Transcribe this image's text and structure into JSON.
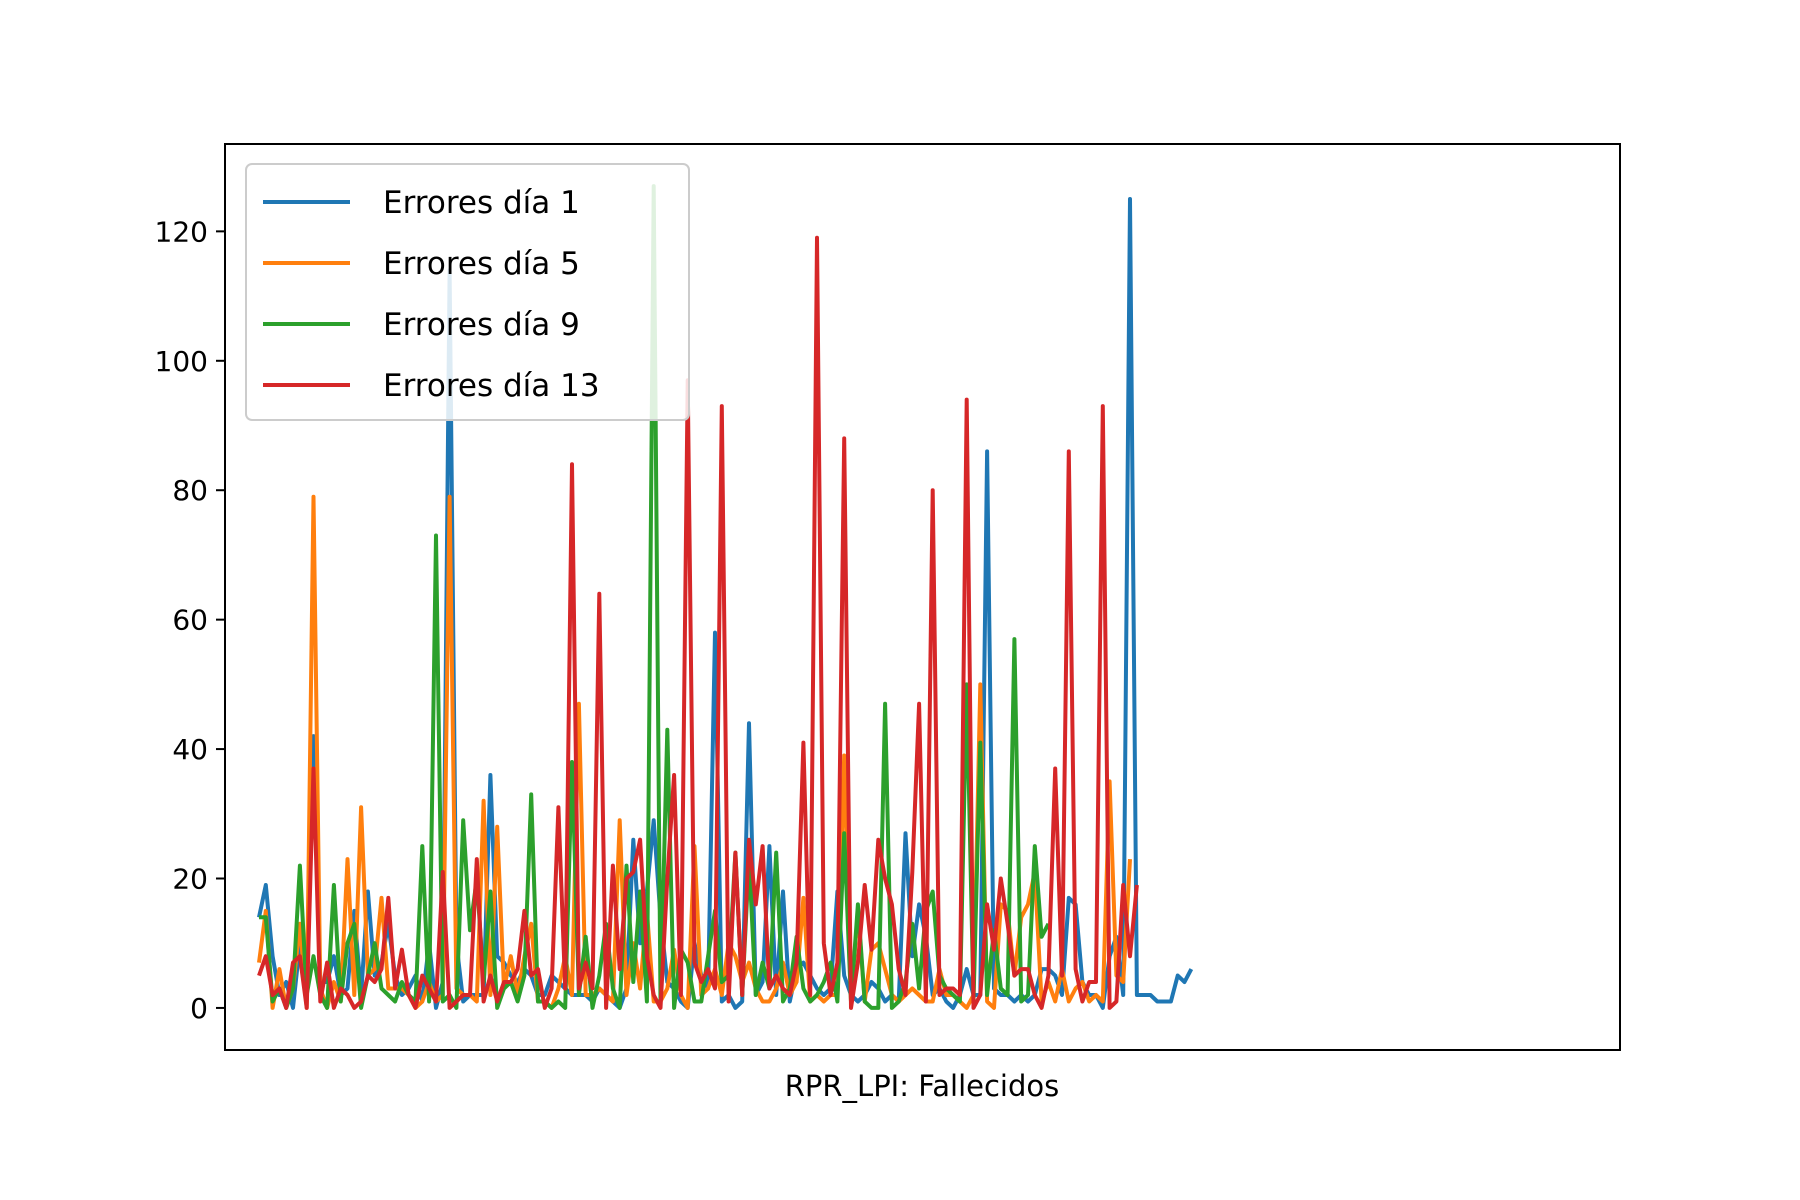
{
  "chart_data": {
    "type": "line",
    "title": "",
    "xlabel": "RPR_LPI: Fallecidos",
    "ylabel": "",
    "ylim": [
      -6.5,
      133.5
    ],
    "xlim": [
      -5,
      200
    ],
    "yticks": [
      0,
      20,
      40,
      60,
      80,
      100,
      120
    ],
    "ytick_labels": [
      "0",
      "20",
      "40",
      "60",
      "80",
      "100",
      "120"
    ],
    "xticks_visible": false,
    "grid": false,
    "legend_position": "upper-left",
    "series": [
      {
        "name": "Errores día 1",
        "color": "#1f77b4",
        "values": [
          14,
          19,
          8,
          2,
          4,
          0,
          10,
          2,
          42,
          4,
          4,
          8,
          2,
          3,
          15,
          2,
          18,
          5,
          7,
          13,
          5,
          2,
          3,
          5,
          1,
          10,
          0,
          4,
          114,
          10,
          1,
          2,
          2,
          2,
          36,
          8,
          7,
          5,
          4,
          6,
          5,
          2,
          2,
          5,
          4,
          3,
          2,
          2,
          2,
          1,
          3,
          2,
          1,
          0,
          3,
          26,
          10,
          18,
          29,
          14,
          4,
          3,
          1,
          0,
          10,
          5,
          3,
          58,
          1,
          2,
          0,
          1,
          44,
          2,
          4,
          25,
          2,
          18,
          1,
          6,
          7,
          5,
          3,
          2,
          3,
          18,
          5,
          2,
          1,
          2,
          4,
          3,
          1,
          2,
          1,
          27,
          8,
          16,
          11,
          2,
          3,
          1,
          0,
          2,
          6,
          2,
          2,
          86,
          3,
          2,
          2,
          1,
          2,
          1,
          2,
          6,
          6,
          5,
          2,
          17,
          16,
          4,
          2,
          2,
          0,
          8,
          11,
          2,
          125,
          2,
          2,
          2,
          1,
          1,
          1,
          5,
          4,
          6
        ],
        "x": [
          0,
          1,
          2,
          3,
          4,
          5,
          6,
          7,
          8,
          9,
          10,
          11,
          12,
          13,
          14,
          15,
          16,
          17,
          18,
          19,
          20,
          21,
          22,
          23,
          24,
          25,
          26,
          27,
          28,
          29,
          30,
          31,
          32,
          33,
          34,
          35,
          36,
          37,
          38,
          39,
          40,
          41,
          42,
          43,
          44,
          45,
          46,
          47,
          48,
          49,
          50,
          51,
          52,
          53,
          54,
          55,
          56,
          57,
          58,
          59,
          60,
          61,
          62,
          63,
          64,
          65,
          66,
          67,
          68,
          69,
          70,
          71,
          72,
          73,
          74,
          75,
          76,
          77,
          78,
          79,
          80,
          81,
          82,
          83,
          84,
          85,
          86,
          87,
          88,
          89,
          90,
          91,
          92,
          93,
          94,
          95,
          96,
          97,
          98,
          99,
          100,
          101,
          102,
          103,
          104,
          105,
          106,
          107,
          108,
          109,
          110,
          111,
          112,
          113,
          114,
          115,
          116,
          117,
          118,
          119,
          120,
          121,
          122,
          123,
          124,
          125,
          126,
          127,
          128,
          129,
          130,
          131,
          132,
          133,
          134,
          135,
          136,
          137
        ]
      },
      {
        "name": "Errores día 5",
        "color": "#ff7f0e",
        "values": [
          7,
          15,
          0,
          6,
          0,
          3,
          13,
          0,
          79,
          3,
          0,
          4,
          1,
          23,
          2,
          31,
          5,
          6,
          17,
          3,
          3,
          3,
          2,
          0,
          1,
          4,
          1,
          2,
          79,
          3,
          2,
          2,
          1,
          32,
          2,
          28,
          3,
          8,
          2,
          8,
          13,
          1,
          1,
          0,
          3,
          8,
          2,
          47,
          2,
          2,
          3,
          2,
          1,
          29,
          2,
          10,
          3,
          15,
          1,
          1,
          3,
          9,
          2,
          0,
          25,
          2,
          3,
          6,
          2,
          10,
          8,
          4,
          7,
          3,
          1,
          1,
          3,
          7,
          2,
          4,
          17,
          1,
          2,
          1,
          2,
          2,
          39,
          1,
          15,
          1,
          9,
          10,
          6,
          2,
          1,
          2,
          3,
          2,
          1,
          1,
          6,
          2,
          2,
          1,
          0,
          2,
          50,
          1,
          0,
          16,
          15,
          5,
          14,
          16,
          21,
          1,
          4,
          1,
          6,
          1,
          3,
          4,
          1,
          2,
          1,
          35,
          5,
          4,
          23
        ],
        "x": [
          0,
          1,
          2,
          3,
          4,
          5,
          6,
          7,
          8,
          9,
          10,
          11,
          12,
          13,
          14,
          15,
          16,
          17,
          18,
          19,
          20,
          21,
          22,
          23,
          24,
          25,
          26,
          27,
          28,
          29,
          30,
          31,
          32,
          33,
          34,
          35,
          36,
          37,
          38,
          39,
          40,
          41,
          42,
          43,
          44,
          45,
          46,
          47,
          48,
          49,
          50,
          51,
          52,
          53,
          54,
          55,
          56,
          57,
          58,
          59,
          60,
          61,
          62,
          63,
          64,
          65,
          66,
          67,
          68,
          69,
          70,
          71,
          72,
          73,
          74,
          75,
          76,
          77,
          78,
          79,
          80,
          81,
          82,
          83,
          84,
          85,
          86,
          87,
          88,
          89,
          90,
          91,
          92,
          93,
          94,
          95,
          96,
          97,
          98,
          99,
          100,
          101,
          102,
          103,
          104,
          105,
          106,
          107,
          108,
          109,
          110,
          111,
          112,
          113,
          114,
          115,
          116,
          117,
          118,
          119,
          120,
          121,
          122,
          123,
          124,
          125,
          126,
          127,
          128
        ]
      },
      {
        "name": "Errores día 9",
        "color": "#2ca02c",
        "values": [
          14,
          14,
          1,
          3,
          0,
          3,
          22,
          2,
          8,
          2,
          0,
          19,
          1,
          10,
          13,
          0,
          5,
          10,
          3,
          2,
          1,
          4,
          2,
          1,
          25,
          1,
          73,
          1,
          2,
          0,
          29,
          12,
          20,
          4,
          18,
          0,
          3,
          4,
          1,
          5,
          33,
          1,
          1,
          0,
          1,
          0,
          38,
          2,
          11,
          0,
          5,
          13,
          3,
          0,
          22,
          4,
          18,
          1,
          127,
          1,
          43,
          0,
          9,
          7,
          1,
          1,
          8,
          15,
          4,
          5,
          24,
          2,
          23,
          2,
          7,
          3,
          24,
          1,
          3,
          11,
          3,
          1,
          2,
          4,
          7,
          1,
          27,
          1,
          16,
          1,
          0,
          0,
          47,
          0,
          1,
          4,
          13,
          3,
          15,
          18,
          5,
          3,
          2,
          1,
          50,
          1,
          41,
          2,
          12,
          3,
          2,
          57,
          1,
          2,
          25,
          11,
          13
        ],
        "x": [
          0,
          1,
          2,
          3,
          4,
          5,
          6,
          7,
          8,
          9,
          10,
          11,
          12,
          13,
          14,
          15,
          16,
          17,
          18,
          19,
          20,
          21,
          22,
          23,
          24,
          25,
          26,
          27,
          28,
          29,
          30,
          31,
          32,
          33,
          34,
          35,
          36,
          37,
          38,
          39,
          40,
          41,
          42,
          43,
          44,
          45,
          46,
          47,
          48,
          49,
          50,
          51,
          52,
          53,
          54,
          55,
          56,
          57,
          58,
          59,
          60,
          61,
          62,
          63,
          64,
          65,
          66,
          67,
          68,
          69,
          70,
          71,
          72,
          73,
          74,
          75,
          76,
          77,
          78,
          79,
          80,
          81,
          82,
          83,
          84,
          85,
          86,
          87,
          88,
          89,
          90,
          91,
          92,
          93,
          94,
          95,
          96,
          97,
          98,
          99,
          100,
          101,
          102,
          103,
          104,
          105,
          106,
          107,
          108,
          109,
          110,
          111,
          112,
          113,
          114,
          115,
          116
        ]
      },
      {
        "name": "Errores día 13",
        "color": "#d62728",
        "values": [
          5,
          8,
          2,
          3,
          0,
          7,
          8,
          0,
          37,
          1,
          7,
          0,
          3,
          2,
          0,
          1,
          5,
          4,
          6,
          17,
          3,
          9,
          2,
          0,
          5,
          3,
          1,
          21,
          0,
          1,
          2,
          2,
          23,
          1,
          5,
          1,
          4,
          4,
          6,
          15,
          5,
          6,
          0,
          3,
          31,
          3,
          84,
          3,
          7,
          3,
          64,
          0,
          22,
          6,
          20,
          21,
          26,
          8,
          2,
          0,
          20,
          36,
          2,
          97,
          7,
          4,
          6,
          3,
          93,
          1,
          24,
          2,
          26,
          16,
          25,
          3,
          5,
          3,
          2,
          7,
          41,
          2,
          119,
          10,
          2,
          7,
          88,
          0,
          7,
          19,
          9,
          26,
          20,
          16,
          6,
          2,
          21,
          47,
          1,
          80,
          2,
          3,
          3,
          2,
          94,
          0,
          2,
          16,
          9,
          20,
          13,
          5,
          6,
          6,
          2,
          0,
          5,
          37,
          5,
          86,
          6,
          1,
          4,
          4,
          93,
          0,
          1,
          19,
          8,
          19
        ],
        "x": [
          0,
          1,
          2,
          3,
          4,
          5,
          6,
          7,
          8,
          9,
          10,
          11,
          12,
          13,
          14,
          15,
          16,
          17,
          18,
          19,
          20,
          21,
          22,
          23,
          24,
          25,
          26,
          27,
          28,
          29,
          30,
          31,
          32,
          33,
          34,
          35,
          36,
          37,
          38,
          39,
          40,
          41,
          42,
          43,
          44,
          45,
          46,
          47,
          48,
          49,
          50,
          51,
          52,
          53,
          54,
          55,
          56,
          57,
          58,
          59,
          60,
          61,
          62,
          63,
          64,
          65,
          66,
          67,
          68,
          69,
          70,
          71,
          72,
          73,
          74,
          75,
          76,
          77,
          78,
          79,
          80,
          81,
          82,
          83,
          84,
          85,
          86,
          87,
          88,
          89,
          90,
          91,
          92,
          93,
          94,
          95,
          96,
          97,
          98,
          99,
          100,
          101,
          102,
          103,
          104,
          105,
          106,
          107,
          108,
          109,
          110,
          111,
          112,
          113,
          114,
          115,
          116,
          117,
          118,
          119,
          120,
          121,
          122,
          123,
          124,
          125,
          126,
          127,
          128,
          129
        ]
      }
    ]
  }
}
